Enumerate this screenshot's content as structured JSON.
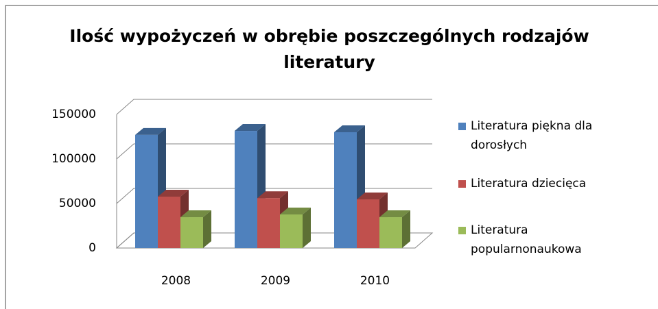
{
  "chart_data": {
    "type": "bar3d",
    "title": "Ilość wypożyczeń w obrębie poszczególnych rodzajów literatury",
    "categories": [
      "2008",
      "2009",
      "2010"
    ],
    "series": [
      {
        "name": "Literatura piękna dla dorosłych",
        "color": "#4f81bd",
        "values": [
          127000,
          131500,
          130000
        ]
      },
      {
        "name": "Literatura dziecięca",
        "color": "#c0504d",
        "values": [
          57700,
          56000,
          54600
        ]
      },
      {
        "name": "Literatura popularnonaukowa",
        "color": "#9bbb59",
        "values": [
          34600,
          37700,
          34600
        ]
      }
    ],
    "ylim": [
      0,
      150000
    ],
    "yticks": [
      0,
      50000,
      100000,
      150000
    ],
    "grid": true,
    "legend": "right"
  }
}
